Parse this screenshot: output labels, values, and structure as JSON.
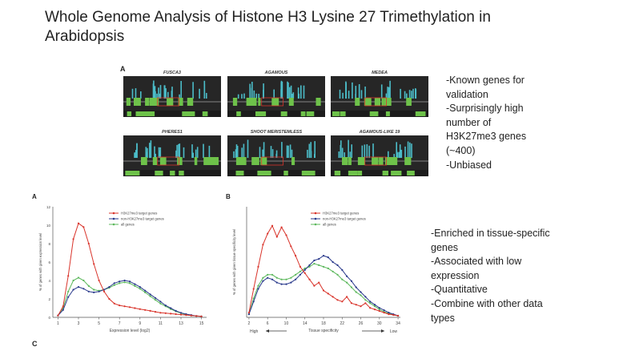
{
  "slide": {
    "title": "Whole Genome Analysis of Histone H3 Lysine 27 Trimethylation in Arabidopsis",
    "bullets_top": [
      "-Known genes for",
      "validation",
      "-Surprisingly high",
      "number of",
      "H3K27me3 genes",
      "(~400)",
      "-Unbiased"
    ],
    "bullets_bottom": [
      "-Enriched in tissue-specific",
      "genes",
      "-Associated with low",
      "expression",
      "-Quantitative",
      "-Combine with other data",
      "types"
    ]
  },
  "tracks_figure": {
    "panel_label": "A",
    "gene_titles": [
      "FUSCA3",
      "AGAMOUS",
      "MEDEA",
      "PHERES1",
      "SHOOT MERISTEMLESS",
      "AGAMOUS-LIKE 19"
    ]
  },
  "colors": {
    "signal": "#4bbcc8",
    "track_bg": "#262626",
    "gene": "#6ec24a",
    "h3k27": "#d9342b",
    "non_h3k27": "#2a3a8c",
    "all_genes": "#5cb85c"
  },
  "chart_data": [
    {
      "type": "line",
      "panel_label": "A",
      "xlabel": "Expression level (log2)",
      "ylabel": "% of genes with given expression level",
      "x": [
        1,
        1.5,
        2,
        2.5,
        3,
        3.5,
        4,
        4.5,
        5,
        5.5,
        6,
        6.5,
        7,
        7.5,
        8,
        8.5,
        9,
        9.5,
        10,
        10.5,
        11,
        11.5,
        12,
        12.5,
        13,
        13.5,
        14,
        14.5,
        15
      ],
      "xticks": [
        "1",
        "3",
        "5",
        "7",
        "9",
        "11",
        "13",
        "15"
      ],
      "yticks": [
        "0",
        "2",
        "4",
        "6",
        "8",
        "10",
        "12"
      ],
      "xlim": [
        0.5,
        15.5
      ],
      "ylim": [
        0,
        12
      ],
      "series": [
        {
          "name": "H3K27me3 target genes",
          "color": "#d9342b",
          "values": [
            0.2,
            1.2,
            4.5,
            8.5,
            10.2,
            9.8,
            8,
            5.8,
            4,
            2.8,
            2,
            1.5,
            1.3,
            1.2,
            1.1,
            1,
            0.9,
            0.8,
            0.7,
            0.6,
            0.5,
            0.45,
            0.4,
            0.35,
            0.3,
            0.25,
            0.2,
            0.15,
            0.1
          ]
        },
        {
          "name": "non-H3K27me3 target genes",
          "color": "#2a3a8c",
          "values": [
            0.2,
            0.8,
            2.2,
            3,
            3.3,
            3.1,
            2.8,
            2.7,
            2.8,
            3,
            3.3,
            3.7,
            3.9,
            4,
            3.9,
            3.6,
            3.3,
            2.9,
            2.5,
            2.1,
            1.7,
            1.3,
            1,
            0.7,
            0.5,
            0.35,
            0.25,
            0.15,
            0.1
          ]
        },
        {
          "name": "all genes",
          "color": "#5cb85c",
          "values": [
            0.2,
            1,
            2.8,
            4,
            4.3,
            4,
            3.4,
            3,
            2.9,
            3,
            3.2,
            3.5,
            3.7,
            3.8,
            3.7,
            3.4,
            3.1,
            2.7,
            2.3,
            1.9,
            1.5,
            1.2,
            0.9,
            0.65,
            0.45,
            0.3,
            0.2,
            0.15,
            0.1
          ]
        }
      ]
    },
    {
      "type": "line",
      "panel_label": "B",
      "xlabel": "Tissue specificity",
      "xlabel_left": "High",
      "xlabel_right": "Low",
      "ylabel": "% of genes with given tissue specificity level",
      "x": [
        2,
        3,
        4,
        5,
        6,
        7,
        8,
        9,
        10,
        11,
        12,
        13,
        14,
        15,
        16,
        17,
        18,
        19,
        20,
        21,
        22,
        23,
        24,
        25,
        26,
        27,
        28,
        29,
        30,
        31,
        32,
        33,
        34
      ],
      "xticks": [
        "2",
        "6",
        "10",
        "14",
        "18",
        "22",
        "26",
        "30",
        "34"
      ],
      "xlim": [
        1.5,
        34.5
      ],
      "ylim": [
        0,
        7
      ],
      "series": [
        {
          "name": "H3K27me3 target genes",
          "color": "#d9342b",
          "values": [
            0.3,
            1.8,
            3.2,
            4.6,
            5.3,
            5.8,
            5.1,
            5.7,
            5.2,
            4.5,
            3.9,
            3.2,
            2.8,
            2.4,
            2,
            2.2,
            1.7,
            1.5,
            1.3,
            1.1,
            1,
            1.3,
            0.9,
            0.8,
            0.7,
            0.9,
            0.6,
            0.5,
            0.4,
            0.3,
            0.2,
            0.15,
            0.1
          ]
        },
        {
          "name": "non-H3K27me3 target genes",
          "color": "#2a3a8c",
          "values": [
            0.2,
            1,
            1.8,
            2.3,
            2.5,
            2.4,
            2.2,
            2.1,
            2.1,
            2.2,
            2.4,
            2.7,
            3,
            3.3,
            3.6,
            3.7,
            3.9,
            3.8,
            3.5,
            3.3,
            3,
            2.6,
            2.3,
            1.9,
            1.6,
            1.3,
            1,
            0.8,
            0.6,
            0.45,
            0.3,
            0.2,
            0.1
          ]
        },
        {
          "name": "all genes",
          "color": "#5cb85c",
          "values": [
            0.2,
            1.2,
            2,
            2.5,
            2.7,
            2.7,
            2.5,
            2.4,
            2.4,
            2.5,
            2.7,
            2.9,
            3.1,
            3.2,
            3.4,
            3.3,
            3.2,
            3.1,
            2.9,
            2.7,
            2.4,
            2.2,
            1.9,
            1.6,
            1.4,
            1.1,
            0.9,
            0.7,
            0.5,
            0.35,
            0.25,
            0.15,
            0.1
          ]
        }
      ]
    }
  ],
  "figure_bottom": {
    "panel_label": "C"
  }
}
